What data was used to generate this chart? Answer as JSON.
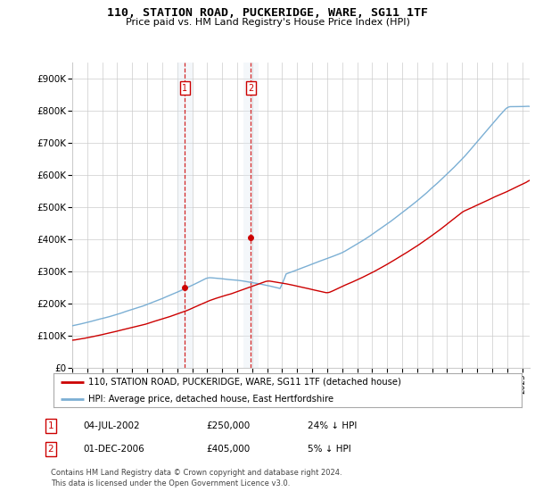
{
  "title": "110, STATION ROAD, PUCKERIDGE, WARE, SG11 1TF",
  "subtitle": "Price paid vs. HM Land Registry's House Price Index (HPI)",
  "ytick_labels": [
    "£0",
    "£100K",
    "£200K",
    "£300K",
    "£400K",
    "£500K",
    "£600K",
    "£700K",
    "£800K",
    "£900K"
  ],
  "yticks": [
    0,
    100000,
    200000,
    300000,
    400000,
    500000,
    600000,
    700000,
    800000,
    900000
  ],
  "ylim": [
    0,
    950000
  ],
  "hpi_color": "#7bafd4",
  "price_color": "#cc0000",
  "vline_color": "#cc0000",
  "shade_color": "#dce6f1",
  "transactions": [
    {
      "date": 2002.5,
      "price": 250000,
      "label": "1"
    },
    {
      "date": 2006.92,
      "price": 405000,
      "label": "2"
    }
  ],
  "legend_line1": "110, STATION ROAD, PUCKERIDGE, WARE, SG11 1TF (detached house)",
  "legend_line2": "HPI: Average price, detached house, East Hertfordshire",
  "table_rows": [
    {
      "num": "1",
      "date": "04-JUL-2002",
      "price": "£250,000",
      "hpi": "24% ↓ HPI"
    },
    {
      "num": "2",
      "date": "01-DEC-2006",
      "price": "£405,000",
      "hpi": "5% ↓ HPI"
    }
  ],
  "footnote1": "Contains HM Land Registry data © Crown copyright and database right 2024.",
  "footnote2": "This data is licensed under the Open Government Licence v3.0.",
  "background_color": "#ffffff",
  "grid_color": "#cccccc",
  "xlim_start": 1995,
  "xlim_end": 2025.5
}
